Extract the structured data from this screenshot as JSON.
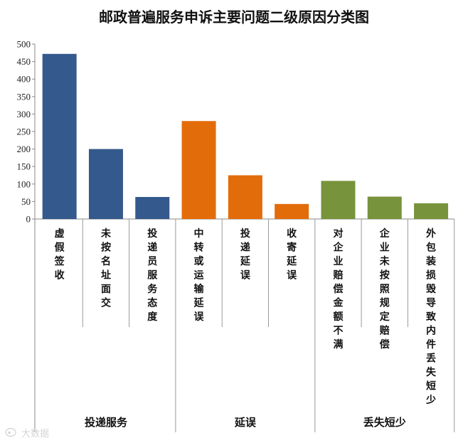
{
  "chart_data": {
    "type": "bar",
    "title": "邮政普遍服务申诉主要问题二级原因分类图",
    "ylim": [
      0,
      500
    ],
    "yticks": [
      0,
      50,
      100,
      150,
      200,
      250,
      300,
      350,
      400,
      450,
      500
    ],
    "grid": false,
    "groups": [
      {
        "name": "投递服务",
        "color": "#34598c",
        "start": 0,
        "end": 3
      },
      {
        "name": "延误",
        "color": "#e36c0a",
        "start": 3,
        "end": 6
      },
      {
        "name": "丢失短少",
        "color": "#77933c",
        "start": 6,
        "end": 9
      }
    ],
    "categories": [
      "虚假签收",
      "未按名址面交",
      "投递员服务态度",
      "中转或运输延误",
      "投递延误",
      "收寄延误",
      "对企业赔偿金额不满",
      "企业未按照规定赔偿",
      "外包装损毁导致内件丢失短少"
    ],
    "values": [
      472,
      200,
      63,
      280,
      125,
      43,
      109,
      64,
      45
    ]
  },
  "watermark": {
    "text": "大数据"
  }
}
